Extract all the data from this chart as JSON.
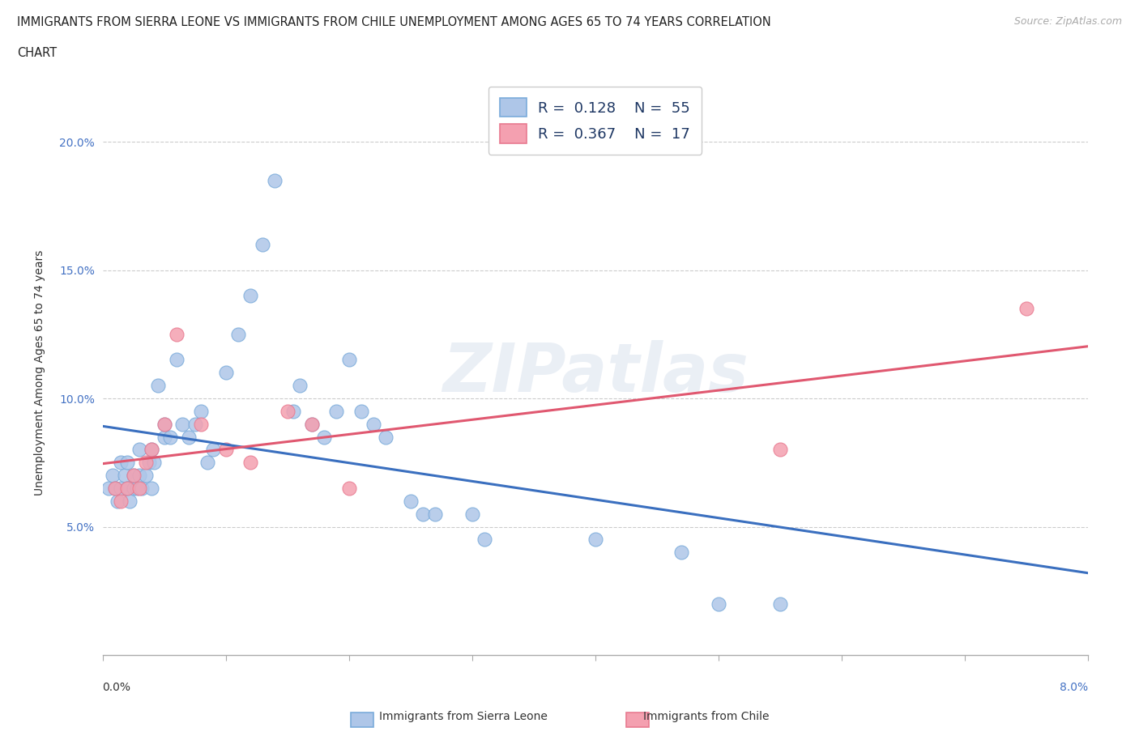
{
  "title_line1": "IMMIGRANTS FROM SIERRA LEONE VS IMMIGRANTS FROM CHILE UNEMPLOYMENT AMONG AGES 65 TO 74 YEARS CORRELATION",
  "title_line2": "CHART",
  "source": "Source: ZipAtlas.com",
  "ylabel": "Unemployment Among Ages 65 to 74 years",
  "xlim": [
    0.0,
    8.0
  ],
  "ylim": [
    0.0,
    22.0
  ],
  "color_sierra": "#aec6e8",
  "color_chile": "#f4a0b0",
  "color_sierra_edge": "#7aabda",
  "color_chile_edge": "#e87a90",
  "color_sierra_line": "#3a6fbf",
  "color_chile_line": "#e05870",
  "legend_text_color": "#1f3864",
  "watermark_color": "#ccd8e8",
  "sierra_x": [
    0.05,
    0.08,
    0.1,
    0.12,
    0.15,
    0.15,
    0.18,
    0.2,
    0.2,
    0.22,
    0.25,
    0.25,
    0.28,
    0.3,
    0.3,
    0.32,
    0.35,
    0.38,
    0.4,
    0.4,
    0.42,
    0.45,
    0.5,
    0.5,
    0.55,
    0.6,
    0.65,
    0.7,
    0.75,
    0.8,
    0.85,
    0.9,
    1.0,
    1.1,
    1.2,
    1.3,
    1.4,
    1.55,
    1.6,
    1.7,
    1.8,
    1.9,
    2.0,
    2.1,
    2.2,
    2.3,
    2.5,
    2.6,
    2.7,
    3.0,
    3.1,
    4.0,
    4.7,
    5.0,
    5.5
  ],
  "sierra_y": [
    6.5,
    7.0,
    6.5,
    6.0,
    6.5,
    7.5,
    7.0,
    6.5,
    7.5,
    6.0,
    6.5,
    7.0,
    6.5,
    7.0,
    8.0,
    6.5,
    7.0,
    7.5,
    6.5,
    8.0,
    7.5,
    10.5,
    8.5,
    9.0,
    8.5,
    11.5,
    9.0,
    8.5,
    9.0,
    9.5,
    7.5,
    8.0,
    11.0,
    12.5,
    14.0,
    16.0,
    18.5,
    9.5,
    10.5,
    9.0,
    8.5,
    9.5,
    11.5,
    9.5,
    9.0,
    8.5,
    6.0,
    5.5,
    5.5,
    5.5,
    4.5,
    4.5,
    4.0,
    2.0,
    2.0
  ],
  "chile_x": [
    0.1,
    0.15,
    0.2,
    0.25,
    0.3,
    0.35,
    0.4,
    0.5,
    0.6,
    0.8,
    1.0,
    1.2,
    1.5,
    1.7,
    2.0,
    5.5,
    7.5
  ],
  "chile_y": [
    6.5,
    6.0,
    6.5,
    7.0,
    6.5,
    7.5,
    8.0,
    9.0,
    12.5,
    9.0,
    8.0,
    7.5,
    9.5,
    9.0,
    6.5,
    8.0,
    13.5
  ]
}
